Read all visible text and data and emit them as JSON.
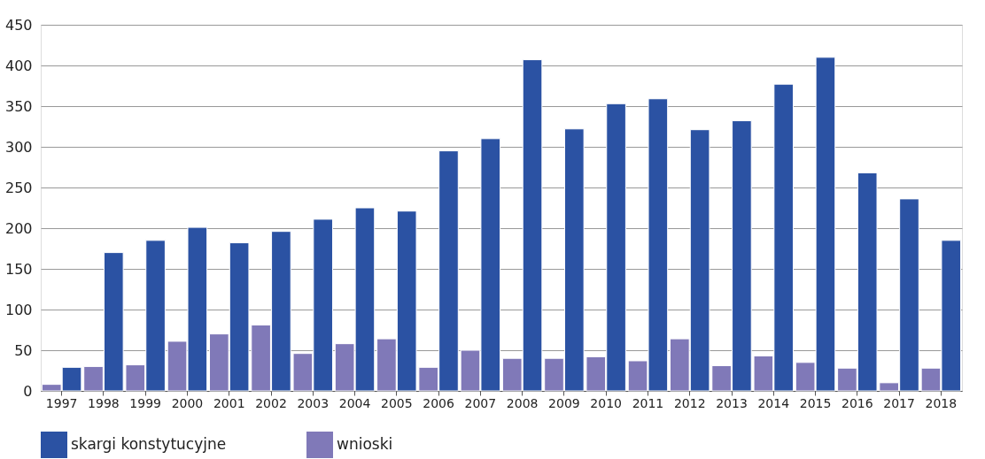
{
  "chart_data": {
    "type": "bar",
    "categories": [
      "1997",
      "1998",
      "1999",
      "2000",
      "2001",
      "2002",
      "2003",
      "2004",
      "2005",
      "2006",
      "2007",
      "2008",
      "2009",
      "2010",
      "2011",
      "2012",
      "2013",
      "2014",
      "2015",
      "2016",
      "2017",
      "2018"
    ],
    "series": [
      {
        "name": "skargi konstytucyjne",
        "color": "#2b52a3",
        "values": [
          29,
          170,
          185,
          201,
          182,
          196,
          211,
          225,
          221,
          295,
          310,
          407,
          322,
          353,
          359,
          321,
          332,
          377,
          410,
          268,
          236,
          185
        ]
      },
      {
        "name": "wnioski",
        "color": "#8079b8",
        "values": [
          8,
          30,
          32,
          61,
          70,
          81,
          46,
          58,
          64,
          29,
          50,
          40,
          40,
          42,
          37,
          64,
          31,
          43,
          35,
          28,
          10,
          28
        ]
      }
    ],
    "ylim": [
      0,
      450
    ],
    "yticks": [
      0,
      50,
      100,
      150,
      200,
      250,
      300,
      350,
      400,
      450
    ],
    "grid": "y",
    "legend": "bottom"
  }
}
